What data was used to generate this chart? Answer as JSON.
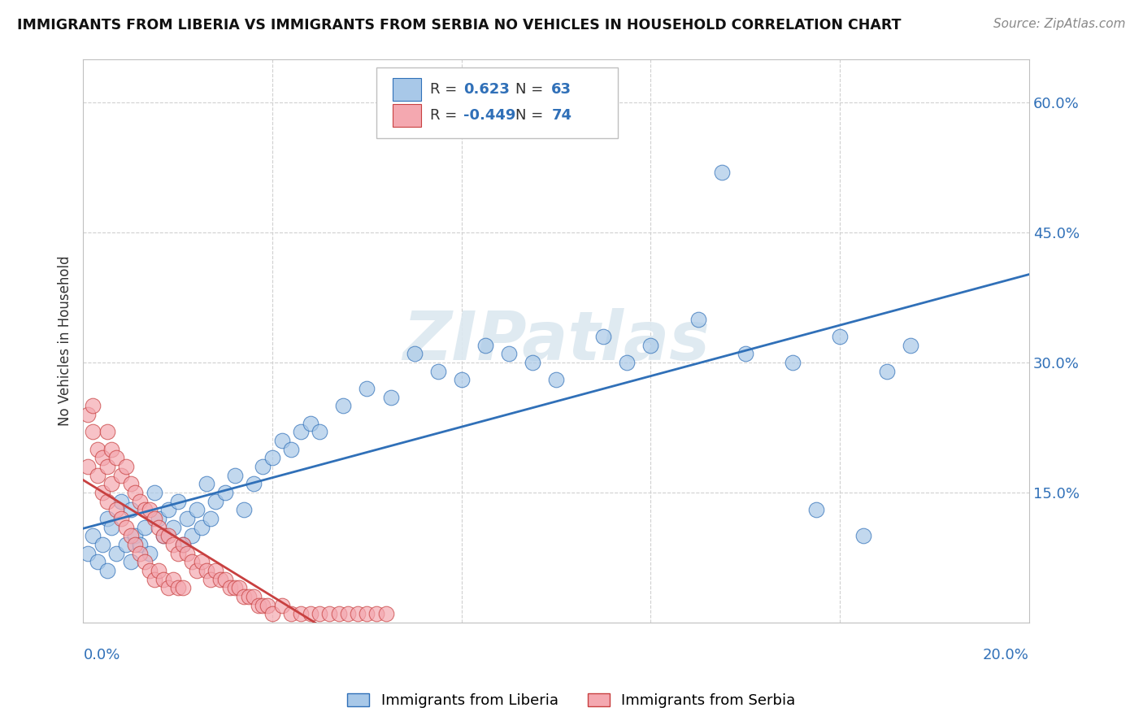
{
  "title": "IMMIGRANTS FROM LIBERIA VS IMMIGRANTS FROM SERBIA NO VEHICLES IN HOUSEHOLD CORRELATION CHART",
  "source": "Source: ZipAtlas.com",
  "ylabel": "No Vehicles in Household",
  "r_liberia": 0.623,
  "n_liberia": 63,
  "r_serbia": -0.449,
  "n_serbia": 74,
  "legend_liberia": "Immigrants from Liberia",
  "legend_serbia": "Immigrants from Serbia",
  "color_liberia": "#a8c8e8",
  "color_serbia": "#f4a8b0",
  "trendline_liberia": "#3070b8",
  "trendline_serbia": "#c84040",
  "right_ytick_vals": [
    0.0,
    0.15,
    0.3,
    0.45,
    0.6
  ],
  "right_ytick_labels": [
    "",
    "15.0%",
    "30.0%",
    "45.0%",
    "60.0%"
  ],
  "xmin": 0.0,
  "xmax": 0.2,
  "ymin": 0.0,
  "ymax": 0.65,
  "watermark": "ZIPatlas",
  "liberia_x": [
    0.001,
    0.002,
    0.003,
    0.004,
    0.005,
    0.005,
    0.006,
    0.007,
    0.008,
    0.009,
    0.01,
    0.01,
    0.011,
    0.012,
    0.013,
    0.014,
    0.015,
    0.016,
    0.017,
    0.018,
    0.019,
    0.02,
    0.021,
    0.022,
    0.023,
    0.024,
    0.025,
    0.026,
    0.027,
    0.028,
    0.03,
    0.032,
    0.034,
    0.036,
    0.038,
    0.04,
    0.042,
    0.044,
    0.046,
    0.048,
    0.05,
    0.055,
    0.06,
    0.065,
    0.07,
    0.075,
    0.08,
    0.085,
    0.09,
    0.095,
    0.1,
    0.11,
    0.115,
    0.12,
    0.13,
    0.14,
    0.15,
    0.16,
    0.17,
    0.175,
    0.135,
    0.155,
    0.165
  ],
  "liberia_y": [
    0.08,
    0.1,
    0.07,
    0.09,
    0.12,
    0.06,
    0.11,
    0.08,
    0.14,
    0.09,
    0.13,
    0.07,
    0.1,
    0.09,
    0.11,
    0.08,
    0.15,
    0.12,
    0.1,
    0.13,
    0.11,
    0.14,
    0.09,
    0.12,
    0.1,
    0.13,
    0.11,
    0.16,
    0.12,
    0.14,
    0.15,
    0.17,
    0.13,
    0.16,
    0.18,
    0.19,
    0.21,
    0.2,
    0.22,
    0.23,
    0.22,
    0.25,
    0.27,
    0.26,
    0.31,
    0.29,
    0.28,
    0.32,
    0.31,
    0.3,
    0.28,
    0.33,
    0.3,
    0.32,
    0.35,
    0.31,
    0.3,
    0.33,
    0.29,
    0.32,
    0.52,
    0.13,
    0.1
  ],
  "serbia_x": [
    0.001,
    0.002,
    0.003,
    0.003,
    0.004,
    0.004,
    0.005,
    0.005,
    0.005,
    0.006,
    0.006,
    0.007,
    0.007,
    0.008,
    0.008,
    0.009,
    0.009,
    0.01,
    0.01,
    0.011,
    0.011,
    0.012,
    0.012,
    0.013,
    0.013,
    0.014,
    0.014,
    0.015,
    0.015,
    0.016,
    0.016,
    0.017,
    0.017,
    0.018,
    0.018,
    0.019,
    0.019,
    0.02,
    0.02,
    0.021,
    0.021,
    0.022,
    0.023,
    0.024,
    0.025,
    0.026,
    0.027,
    0.028,
    0.029,
    0.03,
    0.031,
    0.032,
    0.033,
    0.034,
    0.035,
    0.036,
    0.037,
    0.038,
    0.039,
    0.04,
    0.042,
    0.044,
    0.046,
    0.048,
    0.05,
    0.052,
    0.054,
    0.056,
    0.058,
    0.06,
    0.062,
    0.064,
    0.001,
    0.002
  ],
  "serbia_y": [
    0.18,
    0.22,
    0.2,
    0.17,
    0.19,
    0.15,
    0.22,
    0.18,
    0.14,
    0.2,
    0.16,
    0.19,
    0.13,
    0.17,
    0.12,
    0.18,
    0.11,
    0.16,
    0.1,
    0.15,
    0.09,
    0.14,
    0.08,
    0.13,
    0.07,
    0.13,
    0.06,
    0.12,
    0.05,
    0.11,
    0.06,
    0.1,
    0.05,
    0.1,
    0.04,
    0.09,
    0.05,
    0.08,
    0.04,
    0.09,
    0.04,
    0.08,
    0.07,
    0.06,
    0.07,
    0.06,
    0.05,
    0.06,
    0.05,
    0.05,
    0.04,
    0.04,
    0.04,
    0.03,
    0.03,
    0.03,
    0.02,
    0.02,
    0.02,
    0.01,
    0.02,
    0.01,
    0.01,
    0.01,
    0.01,
    0.01,
    0.01,
    0.01,
    0.01,
    0.01,
    0.01,
    0.01,
    0.24,
    0.25
  ]
}
